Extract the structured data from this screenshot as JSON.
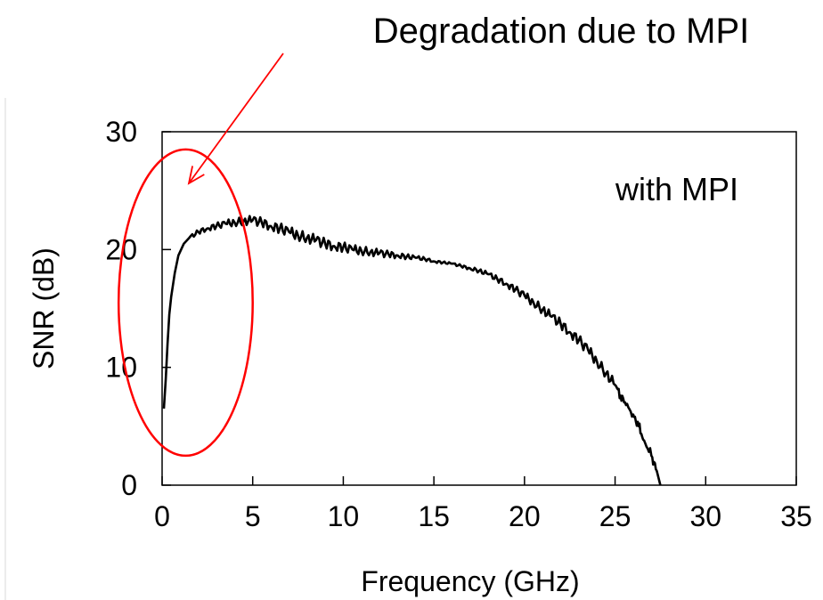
{
  "chart_data": {
    "type": "line",
    "title": "",
    "xlabel": "Frequency (GHz)",
    "ylabel": "SNR (dB)",
    "xlim": [
      0,
      35
    ],
    "ylim": [
      0,
      30
    ],
    "x_ticks": [
      0,
      5,
      10,
      15,
      20,
      25,
      30,
      35
    ],
    "y_ticks": [
      0,
      10,
      20,
      30
    ],
    "grid": false,
    "legend": "none",
    "series": [
      {
        "line_color": "#000000",
        "x": [
          0.1,
          0.2,
          0.3,
          0.4,
          0.5,
          0.7,
          0.9,
          1.2,
          1.5,
          2,
          2.5,
          3,
          3.5,
          4,
          4.5,
          5,
          5.5,
          6,
          6.5,
          7,
          7.5,
          8,
          8.5,
          9,
          9.5,
          10,
          10.5,
          11,
          11.5,
          12,
          12.5,
          13,
          13.5,
          14,
          14.5,
          15,
          15.5,
          16,
          16.5,
          17,
          17.5,
          18,
          18.5,
          19,
          19.5,
          20,
          20.5,
          21,
          21.5,
          22,
          22.5,
          23,
          23.5,
          24,
          24.5,
          25,
          25.3,
          25.6,
          26,
          26.3,
          26.6,
          27,
          27.3,
          27.5
        ],
        "y": [
          6.5,
          9,
          12,
          14.5,
          16,
          18,
          19.5,
          20.5,
          21,
          21.5,
          21.8,
          22,
          22.2,
          22.3,
          22.4,
          22.5,
          22.3,
          22,
          21.8,
          21.5,
          21.2,
          21,
          20.8,
          20.5,
          20.3,
          20.2,
          20,
          19.9,
          19.8,
          19.7,
          19.6,
          19.5,
          19.4,
          19.3,
          19.2,
          19,
          18.9,
          18.8,
          18.6,
          18.4,
          18.2,
          17.9,
          17.5,
          17.1,
          16.6,
          16.1,
          15.5,
          14.9,
          14.3,
          13.7,
          13,
          12.3,
          11.5,
          10.5,
          9.5,
          8.5,
          7.6,
          6.8,
          6,
          5,
          3.8,
          2.5,
          1.2,
          0
        ]
      }
    ],
    "annotations": {
      "callout": "Degradation due to MPI",
      "inset_label": "with MPI",
      "arrow_color": "#ff0000",
      "ellipse_color": "#ff0000",
      "highlight_region": {
        "x_center": 1.3,
        "y_center": 15.5,
        "x_halfwidth": 3.7,
        "y_halfwidth": 13
      }
    }
  }
}
